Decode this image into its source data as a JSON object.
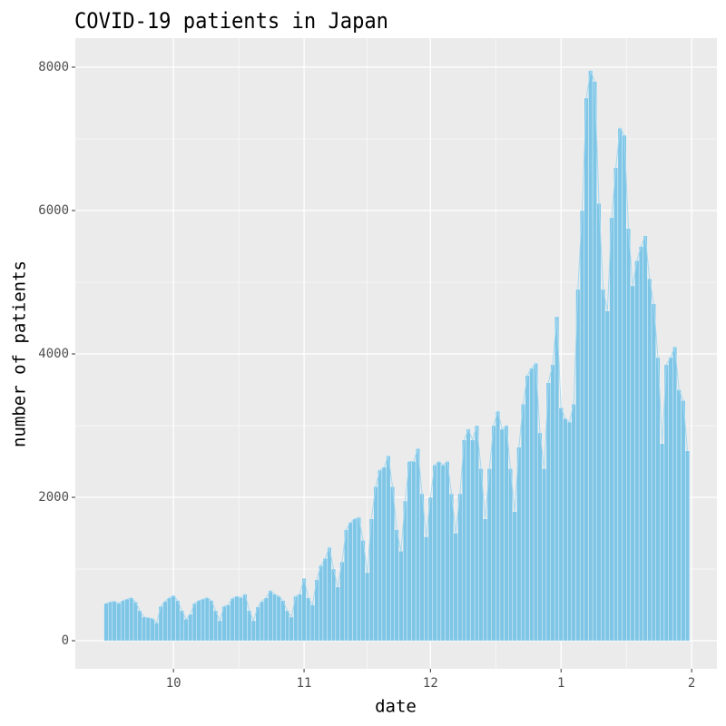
{
  "chart_data": {
    "type": "bar",
    "title": "COVID-19 patients in Japan",
    "x_label": "date",
    "y_label": "number of patients",
    "x": [
      -16,
      -15,
      -14,
      -13,
      -12,
      -11,
      -10,
      -9,
      -8,
      -7,
      -6,
      -5,
      -4,
      -3,
      -2,
      -1,
      0,
      1,
      2,
      3,
      4,
      5,
      6,
      7,
      8,
      9,
      10,
      11,
      12,
      13,
      14,
      15,
      16,
      17,
      18,
      19,
      20,
      21,
      22,
      23,
      24,
      25,
      26,
      27,
      28,
      29,
      30,
      31,
      32,
      33,
      34,
      35,
      36,
      37,
      38,
      39,
      40,
      41,
      42,
      43,
      44,
      45,
      46,
      47,
      48,
      49,
      50,
      51,
      52,
      53,
      54,
      55,
      56,
      57,
      58,
      59,
      60,
      61,
      62,
      63,
      64,
      65,
      66,
      67,
      68,
      69,
      70,
      71,
      72,
      73,
      74,
      75,
      76,
      77,
      78,
      79,
      80,
      81,
      82,
      83,
      84,
      85,
      86,
      87,
      88,
      89,
      90,
      91,
      92,
      93,
      94,
      95,
      96,
      97,
      98,
      99,
      100,
      101,
      102,
      103,
      104,
      105,
      106,
      107,
      108,
      109,
      110,
      111,
      112,
      113,
      114,
      115,
      116,
      117,
      118,
      119,
      120,
      121,
      122
    ],
    "values": [
      520,
      540,
      550,
      520,
      560,
      580,
      600,
      540,
      420,
      330,
      320,
      310,
      250,
      480,
      550,
      600,
      630,
      560,
      420,
      300,
      370,
      520,
      560,
      580,
      600,
      560,
      420,
      280,
      480,
      500,
      590,
      620,
      600,
      650,
      420,
      280,
      470,
      550,
      600,
      700,
      650,
      620,
      560,
      420,
      330,
      620,
      650,
      870,
      600,
      500,
      850,
      1050,
      1150,
      1300,
      1000,
      750,
      1100,
      1550,
      1650,
      1700,
      1720,
      1400,
      950,
      1700,
      2150,
      2380,
      2420,
      2580,
      2150,
      1550,
      1250,
      1950,
      2500,
      2500,
      2680,
      2050,
      1450,
      2000,
      2450,
      2500,
      2450,
      2500,
      2050,
      1500,
      2050,
      2800,
      2950,
      2800,
      3000,
      2400,
      1700,
      2400,
      3000,
      3200,
      2950,
      3000,
      2400,
      1800,
      2700,
      3300,
      3700,
      3800,
      3870,
      2900,
      2400,
      3600,
      3850,
      4520,
      3250,
      3100,
      3050,
      3300,
      4900,
      6000,
      7570,
      7950,
      7800,
      6100,
      4900,
      4600,
      5900,
      6600,
      7150,
      7050,
      5750,
      4950,
      5300,
      5500,
      5650,
      5050,
      4700,
      3950,
      2750,
      3850,
      3950,
      4100,
      3500,
      3350,
      2650
    ],
    "color": "#7ec5e6",
    "line_color": "#a6d8ef",
    "xlim": [
      -23.3,
      129
    ],
    "xticks": [
      {
        "value": 0,
        "label": "10"
      },
      {
        "value": 31,
        "label": "11"
      },
      {
        "value": 61,
        "label": "12"
      },
      {
        "value": 92,
        "label": "1"
      },
      {
        "value": 123,
        "label": "2"
      }
    ],
    "ylim": [
      -392,
      8405
    ],
    "yticks": [
      0,
      2000,
      4000,
      6000,
      8000
    ],
    "grid": true
  }
}
